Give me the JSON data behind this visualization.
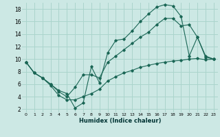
{
  "xlabel": "Humidex (Indice chaleur)",
  "background_color": "#cce8e4",
  "grid_color": "#aad4cc",
  "line_color": "#1a6655",
  "xlim": [
    -0.5,
    23.5
  ],
  "ylim": [
    1.5,
    19.0
  ],
  "xticks": [
    0,
    1,
    2,
    3,
    4,
    5,
    6,
    7,
    8,
    9,
    10,
    11,
    12,
    13,
    14,
    15,
    16,
    17,
    18,
    19,
    20,
    21,
    22,
    23
  ],
  "yticks": [
    2,
    4,
    6,
    8,
    10,
    12,
    14,
    16,
    18
  ],
  "line1_x": [
    0,
    1,
    2,
    3,
    4,
    5,
    6,
    7,
    8,
    9,
    10,
    11,
    12,
    13,
    14,
    15,
    16,
    17,
    18,
    19,
    20,
    21,
    22,
    23
  ],
  "line1_y": [
    9.5,
    7.8,
    7.0,
    6.0,
    5.0,
    4.5,
    2.2,
    3.0,
    8.8,
    6.2,
    11.0,
    13.0,
    13.2,
    14.5,
    16.0,
    17.2,
    18.3,
    18.7,
    18.5,
    16.8,
    10.5,
    13.5,
    10.3,
    10.0
  ],
  "line2_x": [
    0,
    1,
    2,
    3,
    4,
    5,
    6,
    7,
    8,
    9,
    10,
    11,
    12,
    13,
    14,
    15,
    16,
    17,
    18,
    19,
    20,
    21,
    22,
    23
  ],
  "line2_y": [
    9.5,
    7.8,
    7.0,
    6.0,
    4.8,
    4.0,
    5.5,
    7.5,
    7.5,
    7.0,
    9.5,
    10.5,
    11.5,
    12.5,
    13.5,
    14.3,
    15.5,
    16.5,
    16.5,
    15.3,
    15.5,
    13.5,
    10.5,
    10.0
  ],
  "line3_x": [
    0,
    1,
    2,
    3,
    4,
    5,
    6,
    7,
    8,
    9,
    10,
    11,
    12,
    13,
    14,
    15,
    16,
    17,
    18,
    19,
    20,
    21,
    22,
    23
  ],
  "line3_y": [
    9.5,
    7.8,
    7.0,
    5.8,
    4.2,
    3.5,
    3.5,
    4.0,
    4.5,
    5.2,
    6.5,
    7.2,
    7.8,
    8.2,
    8.7,
    9.0,
    9.3,
    9.5,
    9.7,
    9.8,
    10.0,
    10.1,
    9.9,
    10.0
  ]
}
